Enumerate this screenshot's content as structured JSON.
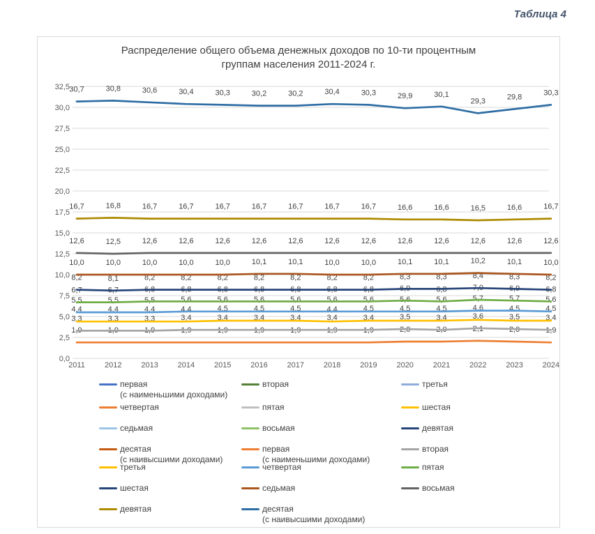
{
  "page": {
    "header_label": "Таблица 4"
  },
  "chart": {
    "title": "Распределение общего объема денежных доходов по 10-ти процентным\nгруппам населения 2011-2024 г."
  },
  "chart_data": {
    "type": "line",
    "title": "Распределение общего объема денежных доходов по 10-ти процентным группам населения 2011-2024 г.",
    "categories": [
      "2011",
      "2012",
      "2013",
      "2014",
      "2015",
      "2016",
      "2017",
      "2018",
      "2019",
      "2020",
      "2021",
      "2022",
      "2023",
      "2024"
    ],
    "y_ticks": [
      "32,5",
      "30,0",
      "27,5",
      "25,0",
      "22,5",
      "20,0",
      "17,5",
      "15,0",
      "12,5",
      "10,0",
      "7,5",
      "5,0",
      "2,5",
      "0,0"
    ],
    "ylim": [
      0,
      32.5
    ],
    "grid": true,
    "data_labels": true,
    "decimal_separator": ",",
    "legend_position": "bottom",
    "series": [
      {
        "name": "первая (с наименьшими доходами)",
        "color": "#ED7D31",
        "values": [
          1.9,
          1.9,
          1.9,
          1.9,
          1.9,
          1.9,
          1.9,
          1.9,
          1.9,
          2.0,
          2.0,
          2.1,
          2.0,
          1.9
        ]
      },
      {
        "name": "вторая",
        "color": "#A5A5A5",
        "values": [
          3.3,
          3.3,
          3.3,
          3.4,
          3.4,
          3.4,
          3.4,
          3.4,
          3.4,
          3.5,
          3.4,
          3.6,
          3.5,
          3.4
        ]
      },
      {
        "name": "третья",
        "color": "#FFC000",
        "values": [
          4.4,
          4.4,
          4.4,
          4.4,
          4.5,
          4.5,
          4.5,
          4.4,
          4.5,
          4.5,
          4.5,
          4.6,
          4.5,
          4.5
        ]
      },
      {
        "name": "четвертая",
        "color": "#5B9BD5",
        "values": [
          5.5,
          5.5,
          5.5,
          5.6,
          5.6,
          5.6,
          5.6,
          5.6,
          5.6,
          5.6,
          5.6,
          5.7,
          5.7,
          5.6
        ]
      },
      {
        "name": "пятая",
        "color": "#70AD47",
        "values": [
          6.7,
          6.7,
          6.8,
          6.8,
          6.8,
          6.8,
          6.8,
          6.8,
          6.8,
          6.9,
          6.8,
          7.0,
          6.9,
          6.8
        ]
      },
      {
        "name": "шестая",
        "color": "#264478",
        "values": [
          8.2,
          8.1,
          8.2,
          8.2,
          8.2,
          8.2,
          8.2,
          8.2,
          8.2,
          8.3,
          8.3,
          8.4,
          8.3,
          8.2
        ]
      },
      {
        "name": "седьмая",
        "color": "#A9551E",
        "values": [
          10.0,
          10.0,
          10.0,
          10.0,
          10.0,
          10.1,
          10.1,
          10.0,
          10.0,
          10.1,
          10.1,
          10.2,
          10.1,
          10.0
        ]
      },
      {
        "name": "восьмая",
        "color": "#636363",
        "values": [
          12.6,
          12.5,
          12.6,
          12.6,
          12.6,
          12.6,
          12.6,
          12.6,
          12.6,
          12.6,
          12.6,
          12.6,
          12.6,
          12.6
        ]
      },
      {
        "name": "девятая",
        "color": "#AD8A00",
        "values": [
          16.7,
          16.8,
          16.7,
          16.7,
          16.7,
          16.7,
          16.7,
          16.7,
          16.7,
          16.6,
          16.6,
          16.5,
          16.6,
          16.7
        ]
      },
      {
        "name": "десятая (с наивысшими доходами)",
        "color": "#2E6DA4",
        "values": [
          30.7,
          30.8,
          30.6,
          30.4,
          30.3,
          30.2,
          30.2,
          30.4,
          30.3,
          29.9,
          30.1,
          29.3,
          29.8,
          30.3
        ]
      }
    ]
  },
  "legend": {
    "entries": [
      {
        "label": "первая",
        "sublabel": "(с наименьшими доходами)",
        "color": "#4472C4"
      },
      {
        "label": "вторая",
        "color": "#538135"
      },
      {
        "label": "третья",
        "color": "#8FAADC"
      },
      {
        "label": "четвертая",
        "color": "#ED7D31"
      },
      {
        "label": "пятая",
        "color": "#BFBFBF"
      },
      {
        "label": "шестая",
        "color": "#FFC000"
      },
      {
        "label": "седьмая",
        "color": "#9DC3E6"
      },
      {
        "label": "восьмая",
        "color": "#8CC168"
      },
      {
        "label": "девятая",
        "color": "#264478"
      },
      {
        "label": "десятая",
        "sublabel": "(с наивысшими доходами)",
        "color": "#C55A11"
      },
      {
        "label": "первая",
        "sublabel": "(с наименьшими доходами)",
        "color": "#ED7D31"
      },
      {
        "label": "вторая",
        "color": "#A5A5A5"
      },
      {
        "label": "третья",
        "color": "#FFC000"
      },
      {
        "label": "четвертая",
        "color": "#5B9BD5"
      },
      {
        "label": "пятая",
        "color": "#70AD47"
      },
      {
        "label": "шестая",
        "color": "#264478"
      },
      {
        "label": "седьмая",
        "color": "#A9551E"
      },
      {
        "label": "восьмая",
        "color": "#636363"
      },
      {
        "label": "девятая",
        "color": "#AD8A00"
      },
      {
        "label": "десятая",
        "sublabel": "(с наивысшими доходами)",
        "color": "#2E6DA4"
      }
    ]
  }
}
